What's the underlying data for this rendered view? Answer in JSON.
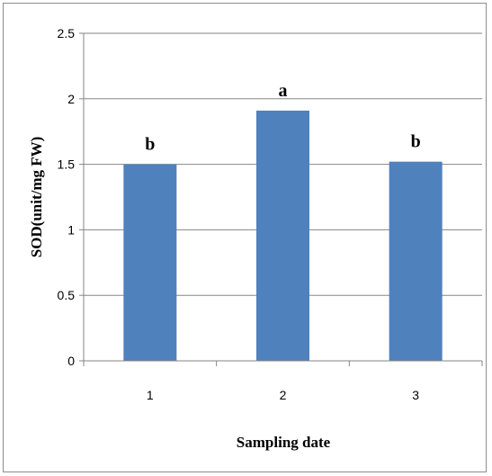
{
  "chart_data": {
    "type": "bar",
    "title": "",
    "xlabel": "Sampling date",
    "ylabel": "SOD(unit/mg FW)",
    "categories": [
      "1",
      "2",
      "3"
    ],
    "values": [
      1.5,
      1.91,
      1.52
    ],
    "data_labels": [
      "b",
      "a",
      "b"
    ],
    "ylim": [
      0,
      2.5
    ],
    "yticks": [
      "0",
      "0.5",
      "1",
      "1.5",
      "2",
      "2.5"
    ],
    "grid": true,
    "legend": "none",
    "colors": {
      "bar": "#4f81bd",
      "grid": "#868686",
      "axis": "#868686",
      "frame": "#8c8c8c"
    }
  }
}
